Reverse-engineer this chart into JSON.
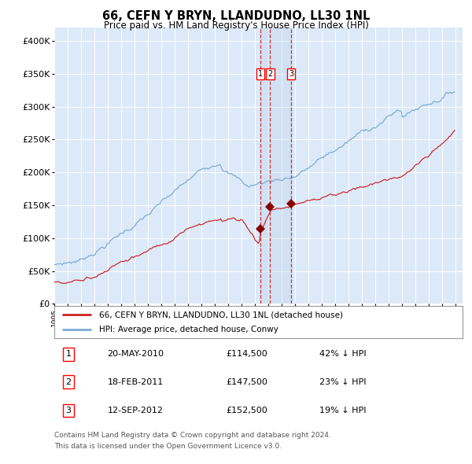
{
  "title": "66, CEFN Y BRYN, LLANDUDNO, LL30 1NL",
  "subtitle": "Price paid vs. HM Land Registry's House Price Index (HPI)",
  "legend_line1": "66, CEFN Y BRYN, LLANDUDNO, LL30 1NL (detached house)",
  "legend_line2": "HPI: Average price, detached house, Conwy",
  "transactions": [
    {
      "num": 1,
      "date_label": "20-MAY-2010",
      "date_year": 2010.38,
      "price": 114500,
      "pct": "42% ↓ HPI"
    },
    {
      "num": 2,
      "date_label": "18-FEB-2011",
      "date_year": 2011.13,
      "price": 147500,
      "pct": "23% ↓ HPI"
    },
    {
      "num": 3,
      "date_label": "12-SEP-2012",
      "date_year": 2012.7,
      "price": 152500,
      "pct": "19% ↓ HPI"
    }
  ],
  "footer_line1": "Contains HM Land Registry data © Crown copyright and database right 2024.",
  "footer_line2": "This data is licensed under the Open Government Licence v3.0.",
  "plot_bg_color": "#dce9f8",
  "hpi_color": "#7aaad4",
  "price_color": "#cc2222",
  "vline_color": "#cc2222",
  "marker_color": "#880000",
  "grid_color": "#c8d8ec",
  "ylim_max": 420000,
  "ytick_vals": [
    0,
    50000,
    100000,
    150000,
    200000,
    250000,
    300000,
    350000,
    400000
  ],
  "ytick_labels": [
    "£0",
    "£50K",
    "£100K",
    "£150K",
    "£200K",
    "£250K",
    "£300K",
    "£350K",
    "£400K"
  ],
  "xmin": 1995,
  "xmax": 2025.5
}
